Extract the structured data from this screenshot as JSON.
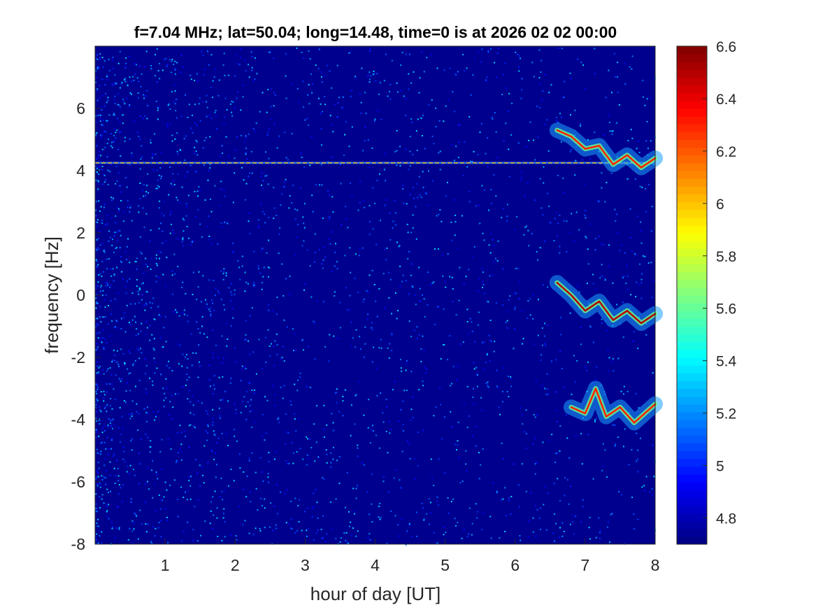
{
  "chart_data": {
    "type": "heatmap",
    "title": "f=7.04 MHz;  lat=50.04; long=14.48, time=0 is at 2026 02 02 00:00",
    "xlabel": "hour of day [UT]",
    "ylabel": "frequency [Hz]",
    "xlim": [
      0,
      8
    ],
    "ylim": [
      -8,
      8
    ],
    "x_ticks": [
      1,
      2,
      3,
      4,
      5,
      6,
      7,
      8
    ],
    "y_ticks": [
      -8,
      -6,
      -4,
      -2,
      0,
      2,
      4,
      6
    ],
    "colormap": "jet",
    "clim": [
      4.7,
      6.6
    ],
    "colorbar_ticks": [
      4.8,
      5,
      5.2,
      5.4,
      5.6,
      5.8,
      6,
      6.2,
      6.4,
      6.6
    ],
    "background_level": 4.75,
    "features": [
      {
        "kind": "carrier-line",
        "frequency": 4.25,
        "x_range": [
          0,
          8
        ],
        "level": 6.0
      },
      {
        "kind": "doppler-trace",
        "x": [
          6.6,
          6.8,
          7.0,
          7.2,
          7.4,
          7.6,
          7.8,
          8.0
        ],
        "y": [
          5.3,
          5.1,
          4.7,
          4.8,
          4.2,
          4.5,
          4.1,
          4.4
        ],
        "level": 6.3
      },
      {
        "kind": "doppler-trace",
        "x": [
          6.6,
          6.8,
          7.0,
          7.2,
          7.4,
          7.6,
          7.8,
          8.0
        ],
        "y": [
          0.4,
          0.0,
          -0.5,
          -0.2,
          -0.8,
          -0.5,
          -0.9,
          -0.6
        ],
        "level": 6.5
      },
      {
        "kind": "doppler-trace",
        "x": [
          6.8,
          7.0,
          7.15,
          7.3,
          7.5,
          7.7,
          7.9,
          8.0
        ],
        "y": [
          -3.6,
          -3.8,
          -3.0,
          -3.9,
          -3.6,
          -4.1,
          -3.7,
          -3.5
        ],
        "level": 6.3
      }
    ]
  }
}
